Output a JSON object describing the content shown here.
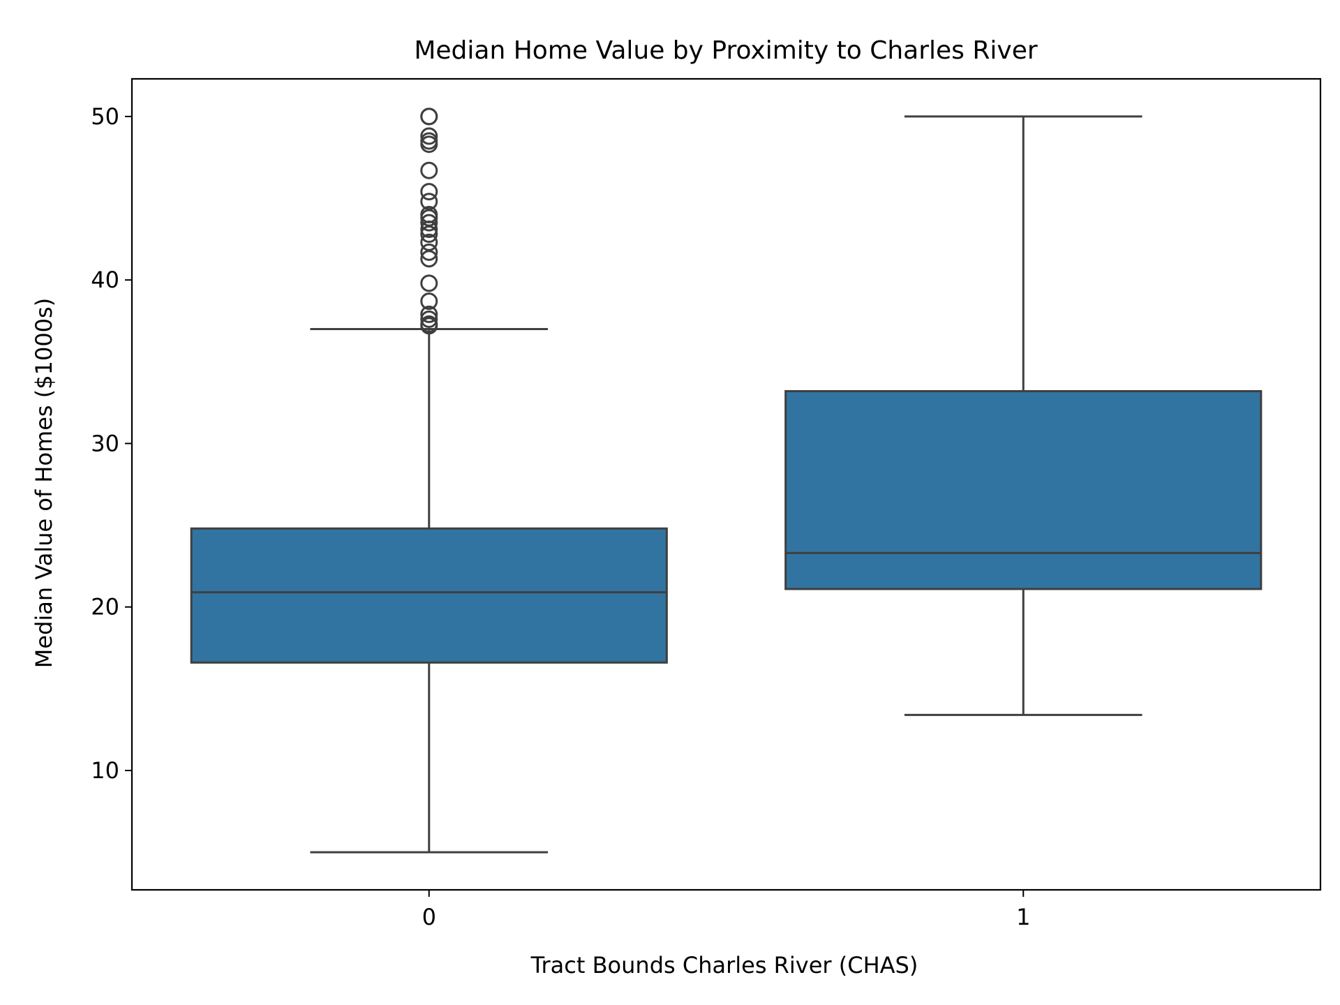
{
  "chart_data": {
    "type": "box",
    "title": "Median Home Value by Proximity to Charles River",
    "xlabel": "Tract Bounds Charles River (CHAS)",
    "ylabel": "Median Value of Homes ($1000s)",
    "categories": [
      "0",
      "1"
    ],
    "ylim": [
      2.7,
      52.3
    ],
    "yticks": [
      10,
      20,
      30,
      40,
      50
    ],
    "grid": false,
    "boxes": [
      {
        "category": "0",
        "whisker_low": 5.0,
        "q1": 16.6,
        "median": 20.9,
        "q3": 24.8,
        "whisker_high": 37.0,
        "outliers": [
          37.2,
          37.3,
          37.6,
          37.9,
          38.7,
          39.8,
          41.3,
          41.7,
          42.3,
          42.8,
          43.1,
          43.5,
          43.8,
          44.0,
          44.8,
          45.4,
          46.7,
          48.3,
          48.5,
          48.8,
          50.0,
          50.0
        ]
      },
      {
        "category": "1",
        "whisker_low": 13.4,
        "q1": 21.1,
        "median": 23.3,
        "q3": 33.2,
        "whisker_high": 50.0,
        "outliers": []
      }
    ],
    "colors": {
      "box_fill": "#3274a1",
      "line": "#3f3f3f",
      "axis": "#000000",
      "background": "#ffffff"
    }
  }
}
